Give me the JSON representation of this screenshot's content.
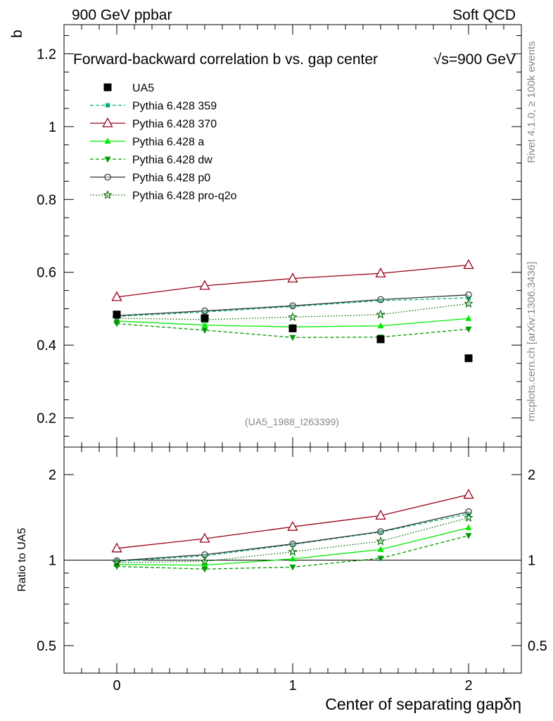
{
  "header": {
    "left": "900 GeV ppbar",
    "right": "Soft QCD"
  },
  "side_text": {
    "rivet": "Rivet 4.1.0, ≥ 100k events",
    "mcplots": "mcplots.cern.ch [arXiv:1306.3436]"
  },
  "chart_data": [
    {
      "type": "line",
      "panel": "main",
      "title": "Forward-backward correlation b  vs. gap center",
      "energy_label": "√s=900 GeV",
      "ylabel": "b",
      "xlabel": "Center of separating gapδη",
      "analysis_id": "(UA5_1988_I263399)",
      "xlim": [
        -0.3,
        2.3
      ],
      "ylim": [
        0.12,
        1.28
      ],
      "yticks": [
        0.2,
        0.4,
        0.6,
        0.8,
        1.0,
        1.2
      ],
      "ytick_labels": [
        "0.2",
        "0.4",
        "0.6",
        "0.8",
        "1",
        "1.2"
      ],
      "x": [
        0,
        0.5,
        1.0,
        1.5,
        2.0
      ],
      "series": [
        {
          "name": "UA5",
          "color": "#000000",
          "marker": "filled-square",
          "line": "none",
          "values": [
            0.484,
            0.474,
            0.446,
            0.416,
            0.364
          ]
        },
        {
          "name": "Pythia 6.428 359",
          "color": "#00b377",
          "marker": "small-square",
          "line": "dashed",
          "values": [
            0.479,
            0.491,
            0.506,
            0.522,
            0.53
          ]
        },
        {
          "name": "Pythia 6.428 370",
          "color": "#99001a",
          "marker": "open-triangle",
          "line": "solid",
          "values": [
            0.532,
            0.563,
            0.583,
            0.597,
            0.62
          ]
        },
        {
          "name": "Pythia 6.428 a",
          "color": "#00ee00",
          "marker": "filled-triangle",
          "line": "solid",
          "values": [
            0.466,
            0.455,
            0.45,
            0.453,
            0.473
          ]
        },
        {
          "name": "Pythia 6.428 dw",
          "color": "#009900",
          "marker": "filled-triangle-down",
          "line": "dashed",
          "values": [
            0.459,
            0.441,
            0.421,
            0.422,
            0.444
          ]
        },
        {
          "name": "Pythia 6.428 p0",
          "color": "#333333",
          "marker": "open-circle",
          "line": "solid",
          "values": [
            0.481,
            0.494,
            0.508,
            0.525,
            0.538
          ]
        },
        {
          "name": "Pythia 6.428 pro-q2o",
          "color": "#006600",
          "marker": "open-star",
          "line": "dotted",
          "values": [
            0.474,
            0.47,
            0.477,
            0.484,
            0.514
          ]
        }
      ]
    },
    {
      "type": "line",
      "panel": "ratio",
      "ylabel": "Ratio to UA5",
      "xlim": [
        -0.3,
        2.3
      ],
      "ylim": [
        0.4,
        2.5
      ],
      "yscale": "log",
      "yticks": [
        0.5,
        1,
        2
      ],
      "ytick_labels": [
        "0.5",
        "1",
        "2"
      ],
      "xticks": [
        0,
        1,
        2
      ],
      "xtick_labels": [
        "0",
        "1",
        "2"
      ],
      "reference_line": 1,
      "x": [
        0,
        0.5,
        1.0,
        1.5,
        2.0
      ],
      "series": [
        {
          "name": "Pythia 6.428 359",
          "values": [
            0.99,
            1.035,
            1.135,
            1.255,
            1.455
          ]
        },
        {
          "name": "Pythia 6.428 370",
          "values": [
            1.1,
            1.19,
            1.31,
            1.435,
            1.7
          ]
        },
        {
          "name": "Pythia 6.428 a",
          "values": [
            0.965,
            0.96,
            1.01,
            1.09,
            1.3
          ]
        },
        {
          "name": "Pythia 6.428 dw",
          "values": [
            0.95,
            0.93,
            0.945,
            1.015,
            1.22
          ]
        },
        {
          "name": "Pythia 6.428 p0",
          "values": [
            0.995,
            1.045,
            1.14,
            1.26,
            1.48
          ]
        },
        {
          "name": "Pythia 6.428 pro-q2o",
          "values": [
            0.98,
            0.99,
            1.07,
            1.165,
            1.41
          ]
        }
      ]
    }
  ]
}
